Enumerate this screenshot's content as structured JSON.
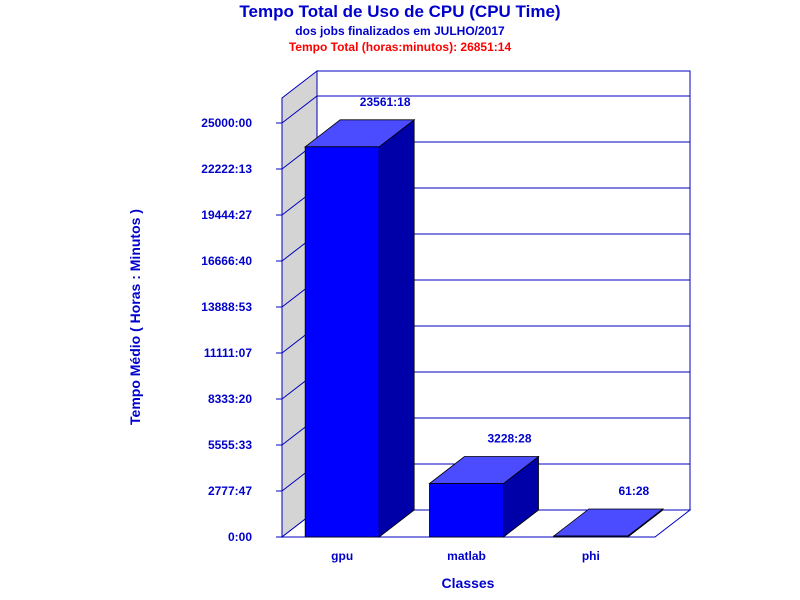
{
  "chart_data": {
    "type": "bar",
    "title": "Tempo Total de Uso de CPU (CPU Time)",
    "subtitle": "dos jobs finalizados em JULHO/2017",
    "total_label": "Tempo Total (horas:minutos): 26851:14",
    "xlabel": "Classes",
    "ylabel": "Tempo Médio ( Horas : Minutos )",
    "categories": [
      "gpu",
      "matlab",
      "phi"
    ],
    "values_minutes": [
      1413678,
      193708,
      3688
    ],
    "value_labels": [
      "23561:18",
      "3228:28",
      "61:28"
    ],
    "y_ticks_minutes": [
      0,
      166667,
      333333,
      500000,
      666667,
      833333,
      1000000,
      1166667,
      1333333,
      1500000
    ],
    "y_tick_labels": [
      "0:00",
      "2777:47",
      "5555:33",
      "8333:20",
      "11111:07",
      "13888:53",
      "16666:40",
      "19444:27",
      "22222:13",
      "25000:00"
    ],
    "ylim_minutes": [
      0,
      1500000
    ],
    "grid": true,
    "colors": {
      "bar_front": "#0000ff",
      "bar_top": "#4b4bff",
      "bar_side": "#0000a8",
      "axis": "#0000c0",
      "text": "#0000cc",
      "total_text": "#ff0000",
      "wall_left": "#d4d4d4"
    }
  }
}
